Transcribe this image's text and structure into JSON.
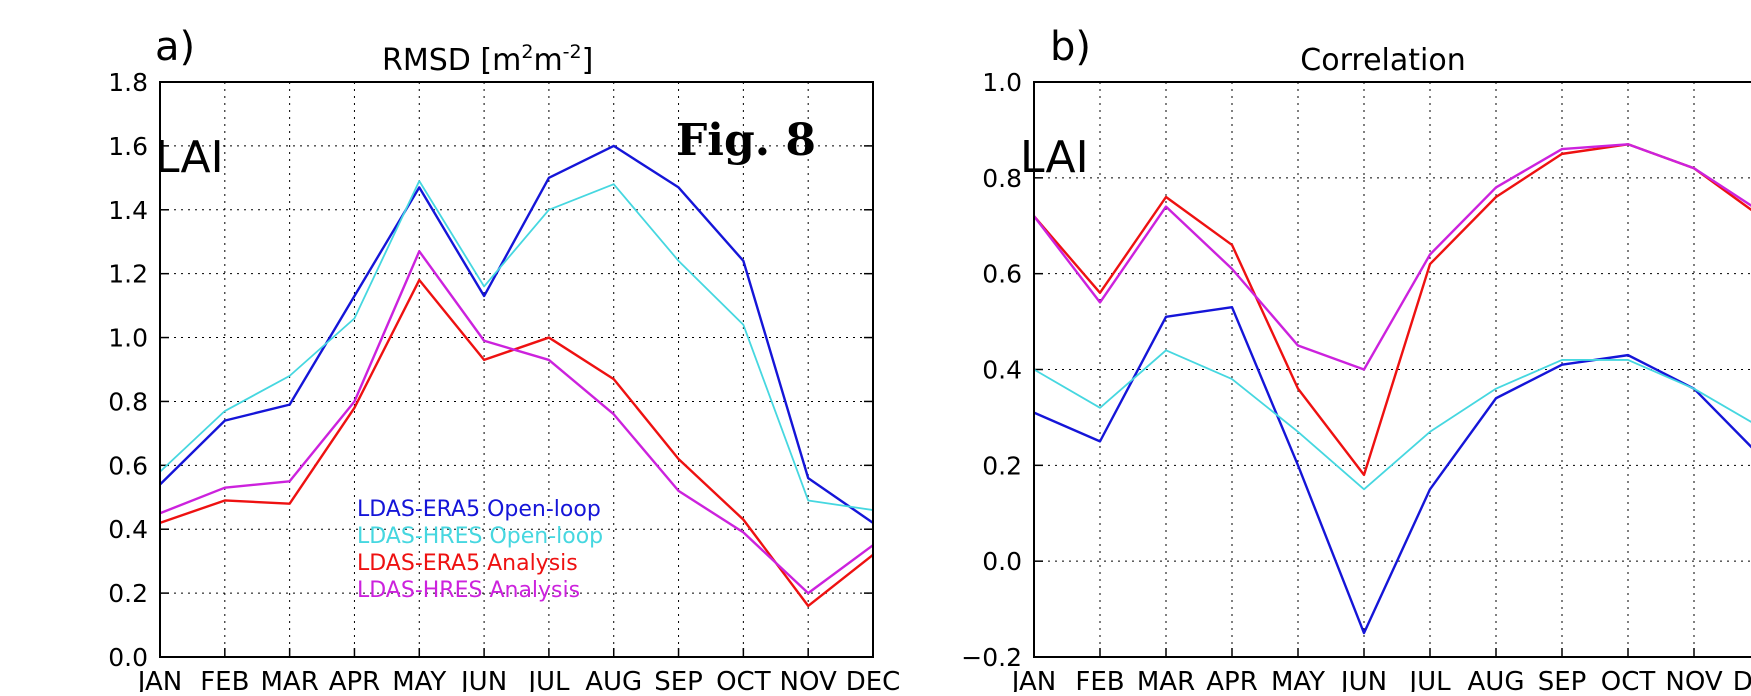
{
  "figure_label": "Fig. 8",
  "chart_data": [
    {
      "type": "line",
      "panel_label": "a)",
      "title": "RMSD [m²m⁻²]",
      "title_parts": {
        "base": "RMSD [m",
        "sup1": "2",
        "mid": "m",
        "sup2": "-2",
        "end": "]"
      },
      "annotation": "LAI",
      "categories": [
        "JAN",
        "FEB",
        "MAR",
        "APR",
        "MAY",
        "JUN",
        "JUL",
        "AUG",
        "SEP",
        "OCT",
        "NOV",
        "DEC"
      ],
      "ylim": [
        0.0,
        1.8
      ],
      "yticks": [
        "0.0",
        "0.2",
        "0.4",
        "0.6",
        "0.8",
        "1.0",
        "1.2",
        "1.4",
        "1.6",
        "1.8"
      ],
      "grid": true,
      "legend_position": "lower-center",
      "series": [
        {
          "name": "LDAS-ERA5 Open-loop",
          "color": "#1515d8",
          "values": [
            0.54,
            0.74,
            0.79,
            1.13,
            1.47,
            1.13,
            1.5,
            1.6,
            1.47,
            1.24,
            0.56,
            0.42
          ]
        },
        {
          "name": "LDAS-HRES Open-loop",
          "color": "#46d7e0",
          "values": [
            0.58,
            0.77,
            0.88,
            1.06,
            1.49,
            1.16,
            1.4,
            1.48,
            1.24,
            1.04,
            0.49,
            0.46
          ]
        },
        {
          "name": "LDAS-ERA5 Analysis",
          "color": "#ee1111",
          "values": [
            0.42,
            0.49,
            0.48,
            0.78,
            1.18,
            0.93,
            1.0,
            0.87,
            0.62,
            0.43,
            0.16,
            0.32
          ]
        },
        {
          "name": "LDAS-HRES Analysis",
          "color": "#cc22dd",
          "values": [
            0.45,
            0.53,
            0.55,
            0.8,
            1.27,
            0.99,
            0.93,
            0.76,
            0.52,
            0.39,
            0.2,
            0.35
          ]
        }
      ]
    },
    {
      "type": "line",
      "panel_label": "b)",
      "title": "Correlation",
      "annotation": "LAI",
      "categories": [
        "JAN",
        "FEB",
        "MAR",
        "APR",
        "MAY",
        "JUN",
        "JUL",
        "AUG",
        "SEP",
        "OCT",
        "NOV",
        "DEC"
      ],
      "ylim": [
        -0.2,
        1.0
      ],
      "yticks": [
        "−0.2",
        "0.0",
        "0.2",
        "0.4",
        "0.6",
        "0.8",
        "1.0"
      ],
      "grid": true,
      "series": [
        {
          "name": "LDAS-ERA5 Open-loop",
          "color": "#1515d8",
          "values": [
            0.31,
            0.25,
            0.51,
            0.53,
            0.2,
            -0.15,
            0.15,
            0.34,
            0.41,
            0.43,
            0.36,
            0.22
          ]
        },
        {
          "name": "LDAS-HRES Open-loop",
          "color": "#46d7e0",
          "values": [
            0.4,
            0.32,
            0.44,
            0.38,
            0.27,
            0.15,
            0.27,
            0.36,
            0.42,
            0.42,
            0.36,
            0.28
          ]
        },
        {
          "name": "LDAS-ERA5 Analysis",
          "color": "#ee1111",
          "values": [
            0.72,
            0.56,
            0.76,
            0.66,
            0.36,
            0.18,
            0.62,
            0.76,
            0.85,
            0.87,
            0.82,
            0.72
          ]
        },
        {
          "name": "LDAS-HRES Analysis",
          "color": "#cc22dd",
          "values": [
            0.72,
            0.54,
            0.74,
            0.61,
            0.45,
            0.4,
            0.64,
            0.78,
            0.86,
            0.87,
            0.82,
            0.73
          ]
        }
      ]
    }
  ]
}
